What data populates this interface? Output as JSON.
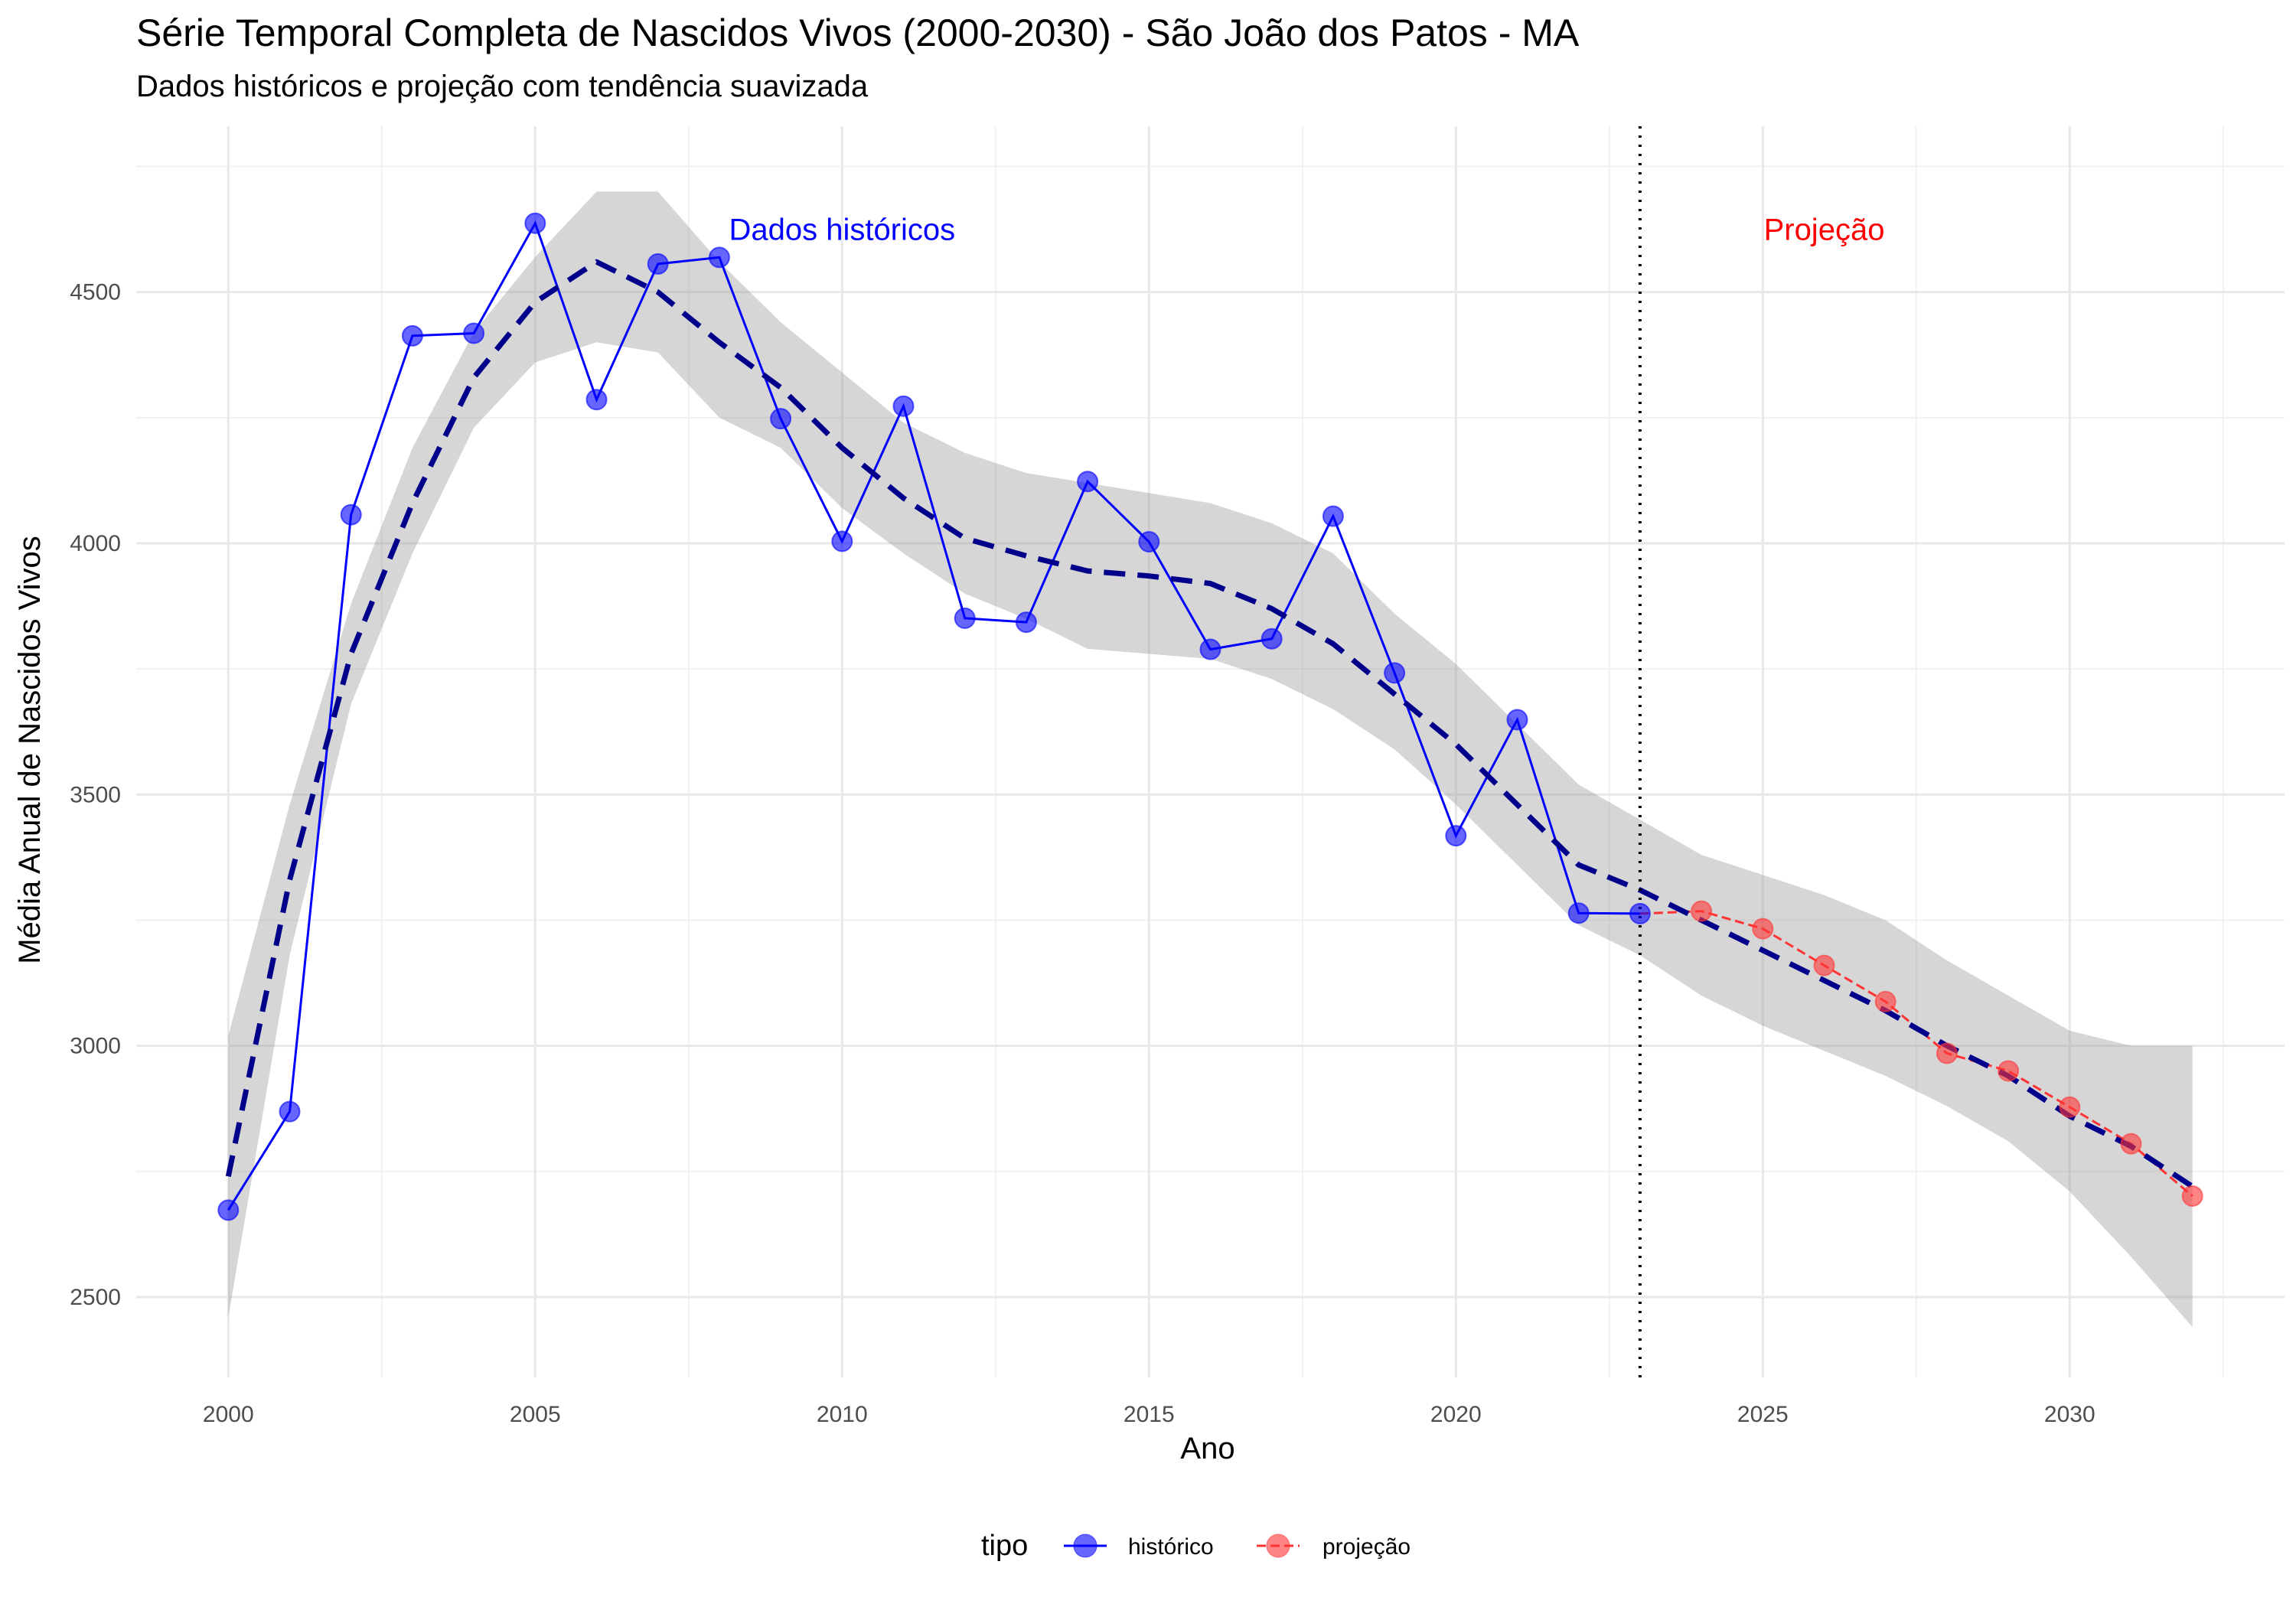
{
  "title": "Série Temporal Completa de Nascidos Vivos (2000-2030) -  São João dos Patos - MA",
  "subtitle": "Dados históricos e projeção com tendência suavizada",
  "chart_data": {
    "type": "line",
    "title": "Série Temporal Completa de Nascidos Vivos (2000-2030) -  São João dos Patos - MA",
    "subtitle": "Dados históricos e projeção com tendência suavizada",
    "xlabel": "Ano",
    "ylabel": "Média Anual de Nascidos Vivos",
    "xlim": [
      1998.5,
      2033.5
    ],
    "ylim": [
      2340,
      4830
    ],
    "x_ticks": [
      2000,
      2005,
      2010,
      2015,
      2020,
      2025,
      2030
    ],
    "y_ticks": [
      2500,
      3000,
      3500,
      4000,
      4500
    ],
    "grid": true,
    "legend": {
      "title": "tipo",
      "position": "bottom",
      "entries": [
        "histórico",
        "projeção"
      ]
    },
    "series": [
      {
        "name": "histórico",
        "color": "#0000ff",
        "x": [
          2000,
          2001,
          2002,
          2003,
          2004,
          2005,
          2006,
          2007,
          2008,
          2009,
          2010,
          2011,
          2012,
          2013,
          2014,
          2015,
          2016,
          2017,
          2018,
          2019,
          2020,
          2021,
          2022,
          2023
        ],
        "y": [
          2673,
          2869,
          4057,
          4413,
          4418,
          4637,
          4286,
          4556,
          4569,
          4248,
          4004,
          4273,
          3851,
          3843,
          4123,
          4003,
          3789,
          3810,
          4054,
          3742,
          3418,
          3649,
          3264,
          3263
        ]
      },
      {
        "name": "projeção",
        "color": "#ff3333",
        "x": [
          2023,
          2024,
          2025,
          2026,
          2027,
          2028,
          2029,
          2030,
          2031,
          2032
        ],
        "y": [
          3263,
          3268,
          3233,
          3160,
          3088,
          2985,
          2950,
          2878,
          2805,
          2701
        ]
      }
    ],
    "trend": {
      "style": "dashed",
      "color": "#00008b",
      "x": [
        2000,
        2001,
        2002,
        2003,
        2004,
        2005,
        2006,
        2007,
        2008,
        2009,
        2010,
        2011,
        2012,
        2013,
        2014,
        2015,
        2016,
        2017,
        2018,
        2019,
        2020,
        2021,
        2022,
        2023,
        2024,
        2025,
        2026,
        2027,
        2028,
        2029,
        2030,
        2031,
        2032
      ],
      "y": [
        2740,
        3330,
        3780,
        4080,
        4330,
        4480,
        4560,
        4500,
        4400,
        4310,
        4190,
        4090,
        4010,
        3975,
        3945,
        3935,
        3920,
        3870,
        3800,
        3700,
        3600,
        3480,
        3360,
        3310,
        3250,
        3190,
        3130,
        3070,
        3000,
        2940,
        2860,
        2800,
        2720
      ],
      "band_upper": [
        3020,
        3480,
        3880,
        4190,
        4420,
        4570,
        4700,
        4700,
        4560,
        4440,
        4340,
        4240,
        4180,
        4140,
        4120,
        4100,
        4080,
        4040,
        3980,
        3860,
        3760,
        3640,
        3520,
        3450,
        3380,
        3340,
        3300,
        3250,
        3170,
        3100,
        3030,
        3000,
        3000
      ],
      "band_lower": [
        2460,
        3180,
        3680,
        3980,
        4230,
        4360,
        4400,
        4380,
        4250,
        4190,
        4070,
        3980,
        3900,
        3850,
        3790,
        3780,
        3770,
        3730,
        3670,
        3590,
        3480,
        3360,
        3240,
        3180,
        3100,
        3040,
        2990,
        2940,
        2880,
        2810,
        2710,
        2580,
        2440
      ]
    },
    "vline_x": 2023,
    "annotations": [
      {
        "text": "Dados históricos",
        "x": 2010,
        "y": 4625,
        "color": "#0000ff"
      },
      {
        "text": "Projeção",
        "x": 2026,
        "y": 4625,
        "color": "#ff0000"
      }
    ]
  }
}
